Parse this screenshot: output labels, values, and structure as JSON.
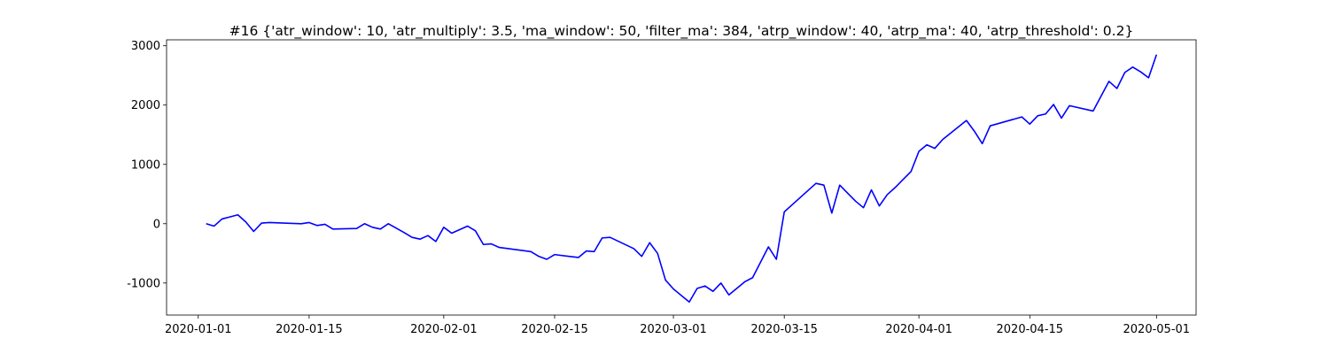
{
  "chart_data": {
    "type": "line",
    "title": "#16 {'atr_window': 10, 'atr_multiply': 3.5, 'ma_window': 50, 'filter_ma': 384, 'atrp_window': 40, 'atrp_ma': 40, 'atrp_threshold': 0.2}",
    "x": [
      "2020-01-02",
      "2020-01-03",
      "2020-01-04",
      "2020-01-06",
      "2020-01-07",
      "2020-01-08",
      "2020-01-09",
      "2020-01-10",
      "2020-01-14",
      "2020-01-15",
      "2020-01-16",
      "2020-01-17",
      "2020-01-18",
      "2020-01-21",
      "2020-01-22",
      "2020-01-23",
      "2020-01-24",
      "2020-01-25",
      "2020-01-27",
      "2020-01-28",
      "2020-01-29",
      "2020-01-30",
      "2020-01-31",
      "2020-02-01",
      "2020-02-02",
      "2020-02-04",
      "2020-02-05",
      "2020-02-06",
      "2020-02-07",
      "2020-02-08",
      "2020-02-12",
      "2020-02-13",
      "2020-02-14",
      "2020-02-15",
      "2020-02-18",
      "2020-02-19",
      "2020-02-20",
      "2020-02-21",
      "2020-02-22",
      "2020-02-25",
      "2020-02-26",
      "2020-02-27",
      "2020-02-28",
      "2020-02-29",
      "2020-03-01",
      "2020-03-03",
      "2020-03-04",
      "2020-03-05",
      "2020-03-06",
      "2020-03-07",
      "2020-03-08",
      "2020-03-10",
      "2020-03-11",
      "2020-03-13",
      "2020-03-14",
      "2020-03-15",
      "2020-03-19",
      "2020-03-20",
      "2020-03-21",
      "2020-03-22",
      "2020-03-24",
      "2020-03-25",
      "2020-03-26",
      "2020-03-27",
      "2020-03-28",
      "2020-03-29",
      "2020-03-31",
      "2020-04-01",
      "2020-04-02",
      "2020-04-03",
      "2020-04-04",
      "2020-04-07",
      "2020-04-08",
      "2020-04-09",
      "2020-04-10",
      "2020-04-14",
      "2020-04-15",
      "2020-04-16",
      "2020-04-17",
      "2020-04-18",
      "2020-04-19",
      "2020-04-20",
      "2020-04-23",
      "2020-04-24",
      "2020-04-25",
      "2020-04-26",
      "2020-04-27",
      "2020-04-28",
      "2020-04-29",
      "2020-04-30",
      "2020-05-01"
    ],
    "series": [
      {
        "color": "#0000ff",
        "values": [
          0,
          -40,
          80,
          150,
          30,
          -130,
          10,
          20,
          0,
          20,
          -30,
          -10,
          -90,
          -80,
          0,
          -60,
          -90,
          0,
          -150,
          -230,
          -260,
          -200,
          -300,
          -60,
          -160,
          -40,
          -120,
          -350,
          -340,
          -400,
          -470,
          -550,
          -600,
          -520,
          -570,
          -460,
          -470,
          -240,
          -230,
          -420,
          -550,
          -320,
          -500,
          -950,
          -1100,
          -1320,
          -1090,
          -1050,
          -1140,
          -1000,
          -1200,
          -980,
          -910,
          -390,
          -600,
          200,
          680,
          650,
          180,
          650,
          380,
          270,
          570,
          300,
          490,
          610,
          880,
          1220,
          1330,
          1270,
          1420,
          1740,
          1560,
          1350,
          1650,
          1800,
          1680,
          1820,
          1850,
          2010,
          1780,
          1990,
          1900,
          2150,
          2400,
          2280,
          2550,
          2640,
          2560,
          2460,
          2850
        ]
      }
    ],
    "xlim": [
      "2019-12-28",
      "2020-05-06"
    ],
    "xticks": [
      "2020-01-01",
      "2020-01-15",
      "2020-02-01",
      "2020-02-15",
      "2020-03-01",
      "2020-03-15",
      "2020-04-01",
      "2020-04-15",
      "2020-05-01"
    ],
    "ylim": [
      -1540,
      3100
    ],
    "yticks": [
      -1000,
      0,
      1000,
      2000,
      3000
    ]
  }
}
